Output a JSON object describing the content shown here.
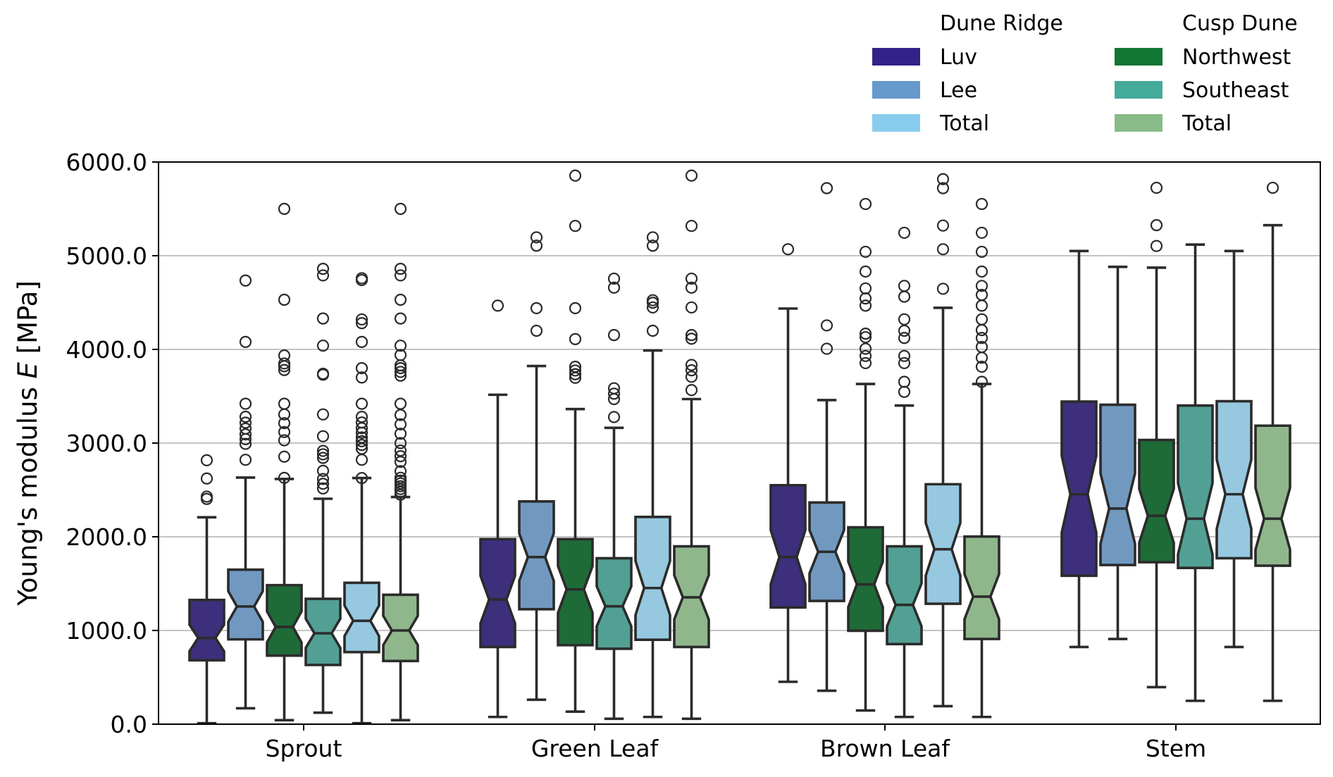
{
  "chart_data": {
    "type": "boxplot",
    "title": "",
    "xlabel": "",
    "ylabel": "Young's modulus E [MPa]",
    "ylabel_parts": {
      "prefix": "Young's modulus ",
      "italic": "E",
      "suffix": " [MPa]"
    },
    "ylim": [
      0,
      6000
    ],
    "yticks": [
      0,
      1000,
      2000,
      3000,
      4000,
      5000,
      6000
    ],
    "ytick_labels": [
      "0.0",
      "1000.0",
      "2000.0",
      "3000.0",
      "4000.0",
      "5000.0",
      "6000.0"
    ],
    "grid": "horizontal",
    "notched": true,
    "categories": [
      "Sprout",
      "Green Leaf",
      "Brown Leaf",
      "Stem"
    ],
    "legend": {
      "placement": "top-right, above plot",
      "groups": [
        {
          "title": "Dune Ridge",
          "entries": [
            {
              "label": "Luv",
              "color": "#332288"
            },
            {
              "label": "Lee",
              "color": "#6699cc"
            },
            {
              "label": "Total",
              "color": "#88ccee"
            }
          ]
        },
        {
          "title": "Cusp Dune",
          "entries": [
            {
              "label": "Northwest",
              "color": "#117733"
            },
            {
              "label": "Southeast",
              "color": "#44aa99"
            },
            {
              "label": "Total",
              "color": "#88bb88"
            }
          ]
        }
      ]
    },
    "series": [
      {
        "name": "Dune Ridge Luv",
        "fill": "#3d2f7c",
        "boxes": [
          {
            "q1": 682,
            "median": 920,
            "q3": 1326,
            "whislo": 10,
            "whishi": 2208,
            "fliers": [
              2404,
              2429,
              2622,
              2817
            ]
          },
          {
            "q1": 824,
            "median": 1330,
            "q3": 1975,
            "whislo": 77,
            "whishi": 3516,
            "fliers": [
              4467
            ]
          },
          {
            "q1": 1246,
            "median": 1783,
            "q3": 2550,
            "whislo": 452,
            "whishi": 4436,
            "fliers": [
              5069
            ]
          },
          {
            "q1": 1584,
            "median": 2454,
            "q3": 3443,
            "whislo": 824,
            "whishi": 5050,
            "fliers": []
          }
        ]
      },
      {
        "name": "Dune Ridge Lee",
        "fill": "#7199c0",
        "boxes": [
          {
            "q1": 905,
            "median": 1256,
            "q3": 1649,
            "whislo": 170,
            "whishi": 2632,
            "fliers": [
              2822,
              2992,
              3042,
              3093,
              3155,
              3218,
              3281,
              3420,
              4080,
              4735
            ]
          },
          {
            "q1": 1227,
            "median": 1783,
            "q3": 2377,
            "whislo": 261,
            "whishi": 3823,
            "fliers": [
              4199,
              4440,
              5107,
              5196
            ]
          },
          {
            "q1": 1315,
            "median": 1840,
            "q3": 2366,
            "whislo": 357,
            "whishi": 3459,
            "fliers": [
              4007,
              4256,
              5721
            ]
          },
          {
            "q1": 1699,
            "median": 2301,
            "q3": 3409,
            "whislo": 909,
            "whishi": 4881,
            "fliers": []
          }
        ]
      },
      {
        "name": "Cusp Dune Northwest",
        "fill": "#1e6b38",
        "boxes": [
          {
            "q1": 732,
            "median": 1038,
            "q3": 1484,
            "whislo": 43,
            "whishi": 2617,
            "fliers": [
              2629,
              2855,
              3030,
              3118,
              3213,
              3306,
              3420,
              3780,
              3820,
              3850,
              3935,
              4530,
              5500
            ]
          },
          {
            "q1": 843,
            "median": 1438,
            "q3": 1975,
            "whislo": 134,
            "whishi": 3363,
            "fliers": [
              3697,
              3735,
              3775,
              3815,
              4110,
              4440,
              5318,
              5855
            ]
          },
          {
            "q1": 997,
            "median": 1492,
            "q3": 2101,
            "whislo": 146,
            "whishi": 3631,
            "fliers": [
              3854,
              3930,
              4007,
              4130,
              4168,
              4467,
              4544,
              4651,
              4831,
              5042,
              5552
            ]
          },
          {
            "q1": 1729,
            "median": 2224,
            "q3": 3033,
            "whislo": 395,
            "whishi": 4873,
            "fliers": [
              5104,
              5326,
              5725
            ]
          }
        ]
      },
      {
        "name": "Cusp Dune Southeast",
        "fill": "#52a093",
        "boxes": [
          {
            "q1": 632,
            "median": 970,
            "q3": 1338,
            "whislo": 123,
            "whishi": 2406,
            "fliers": [
              2516,
              2566,
              2617,
              2704,
              2842,
              2880,
              2917,
              3073,
              3306,
              3730,
              3740,
              4040,
              4330,
              4790,
              4860
            ]
          },
          {
            "q1": 805,
            "median": 1258,
            "q3": 1771,
            "whislo": 58,
            "whishi": 3163,
            "fliers": [
              3278,
              3470,
              3527,
              3585,
              4153,
              4659,
              4755
            ]
          },
          {
            "q1": 855,
            "median": 1273,
            "q3": 1898,
            "whislo": 77,
            "whishi": 3401,
            "fliers": [
              3547,
              3654,
              3854,
              3930,
              4122,
              4199,
              4321,
              4563,
              4678,
              5245
            ]
          },
          {
            "q1": 1668,
            "median": 2193,
            "q3": 3401,
            "whislo": 249,
            "whishi": 5119,
            "fliers": []
          }
        ]
      },
      {
        "name": "Dune Ridge Total",
        "fill": "#96c8e0",
        "boxes": [
          {
            "q1": 769,
            "median": 1103,
            "q3": 1509,
            "whislo": 10,
            "whishi": 2627,
            "fliers": [
              2627,
              2822,
              2940,
              2980,
              3020,
              3060,
              3110,
              3160,
              3220,
              3280,
              3420,
              3700,
              3800,
              4080,
              4280,
              4320,
              4740,
              4760
            ]
          },
          {
            "q1": 901,
            "median": 1453,
            "q3": 2212,
            "whislo": 77,
            "whishi": 3988,
            "fliers": [
              4199,
              4448,
              4498,
              4525,
              5107,
              5196
            ]
          },
          {
            "q1": 1285,
            "median": 1867,
            "q3": 2561,
            "whislo": 192,
            "whishi": 4444,
            "fliers": [
              4647,
              5069,
              5322,
              5721,
              5817
            ]
          },
          {
            "q1": 1771,
            "median": 2454,
            "q3": 3447,
            "whislo": 824,
            "whishi": 5050,
            "fliers": []
          }
        ]
      },
      {
        "name": "Cusp Dune Total",
        "fill": "#8fb78b",
        "boxes": [
          {
            "q1": 674,
            "median": 1000,
            "q3": 1381,
            "whislo": 43,
            "whishi": 2424,
            "fliers": [
              2450,
              2480,
              2510,
              2540,
              2570,
              2600,
              2630,
              2700,
              2800,
              2860,
              2920,
              3000,
              3100,
              3200,
              3300,
              3420,
              3720,
              3760,
              3800,
              3830,
              3940,
              4040,
              4330,
              4530,
              4790,
              4860,
              5500
            ]
          },
          {
            "q1": 824,
            "median": 1354,
            "q3": 1898,
            "whislo": 58,
            "whishi": 3470,
            "fliers": [
              3566,
              3708,
              3777,
              3834,
              4114,
              4153,
              4448,
              4659,
              4755,
              5318,
              5855
            ]
          },
          {
            "q1": 909,
            "median": 1361,
            "q3": 2002,
            "whislo": 77,
            "whishi": 3631,
            "fliers": [
              3654,
              3815,
              3911,
              4026,
              4122,
              4206,
              4321,
              4467,
              4582,
              4678,
              4831,
              5042,
              5245,
              5552
            ]
          },
          {
            "q1": 1691,
            "median": 2193,
            "q3": 3186,
            "whislo": 249,
            "whishi": 5326,
            "fliers": [
              5725
            ]
          }
        ]
      }
    ]
  }
}
